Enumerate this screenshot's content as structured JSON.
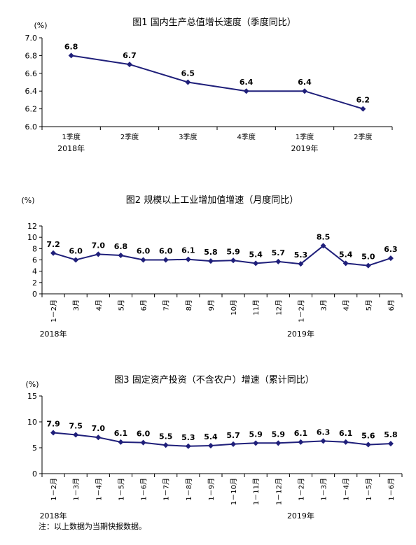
{
  "chart_data": [
    {
      "type": "line",
      "title": "图1 国内生产总值增长速度（季度同比）",
      "unit": "(%)",
      "yticks": [
        "6.0",
        "6.2",
        "6.4",
        "6.6",
        "6.8",
        "7.0"
      ],
      "ylim": [
        6.0,
        7.0
      ],
      "categories": [
        "1季度",
        "2季度",
        "3季度",
        "4季度",
        "1季度",
        "2季度"
      ],
      "year_labels": [
        {
          "text": "2018年",
          "at": 0
        },
        {
          "text": "2019年",
          "at": 4
        }
      ],
      "values": [
        6.8,
        6.7,
        6.5,
        6.4,
        6.4,
        6.2
      ],
      "value_labels": [
        "6.8",
        "6.7",
        "6.5",
        "6.4",
        "6.4",
        "6.2"
      ],
      "grid": false,
      "line_color": "#1f1f7a"
    },
    {
      "type": "line",
      "title": "图2 规模以上工业增加值增速（月度同比）",
      "unit": "(%)",
      "yticks": [
        "0",
        "2",
        "4",
        "6",
        "8",
        "10",
        "12"
      ],
      "ylim": [
        0,
        12
      ],
      "categories": [
        "1－2月",
        "3月",
        "4月",
        "5月",
        "6月",
        "7月",
        "8月",
        "9月",
        "10月",
        "11月",
        "12月",
        "1－2月",
        "3月",
        "4月",
        "5月",
        "6月"
      ],
      "year_labels": [
        {
          "text": "2018年",
          "at": 0
        },
        {
          "text": "2019年",
          "at": 11
        }
      ],
      "values": [
        7.2,
        6.0,
        7.0,
        6.8,
        6.0,
        6.0,
        6.1,
        5.8,
        5.9,
        5.4,
        5.7,
        5.3,
        8.5,
        5.4,
        5.0,
        6.3
      ],
      "value_labels": [
        "7.2",
        "6.0",
        "7.0",
        "6.8",
        "6.0",
        "6.0",
        "6.1",
        "5.8",
        "5.9",
        "5.4",
        "5.7",
        "5.3",
        "8.5",
        "5.4",
        "5.0",
        "6.3"
      ],
      "grid": false,
      "line_color": "#1f1f7a"
    },
    {
      "type": "line",
      "title": "图3 固定资产投资（不含农户）增速（累计同比）",
      "unit": "(%)",
      "yticks": [
        "0",
        "5",
        "10",
        "15"
      ],
      "ylim": [
        0,
        15
      ],
      "categories": [
        "1－2月",
        "1－3月",
        "1－4月",
        "1－5月",
        "1－6月",
        "1－7月",
        "1－8月",
        "1－9月",
        "1－10月",
        "1－11月",
        "1－12月",
        "1－2月",
        "1－3月",
        "1－4月",
        "1－5月",
        "1－6月"
      ],
      "year_labels": [
        {
          "text": "2018年",
          "at": 0
        },
        {
          "text": "2019年",
          "at": 11
        }
      ],
      "values": [
        7.9,
        7.5,
        7.0,
        6.1,
        6.0,
        5.5,
        5.3,
        5.4,
        5.7,
        5.9,
        5.9,
        6.1,
        6.3,
        6.1,
        5.6,
        5.8
      ],
      "value_labels": [
        "7.9",
        "7.5",
        "7.0",
        "6.1",
        "6.0",
        "5.5",
        "5.3",
        "5.4",
        "5.7",
        "5.9",
        "5.9",
        "6.1",
        "6.3",
        "6.1",
        "5.6",
        "5.8"
      ],
      "grid": false,
      "line_color": "#1f1f7a"
    }
  ],
  "footnote": "注：以上数据为当期快报数据。"
}
